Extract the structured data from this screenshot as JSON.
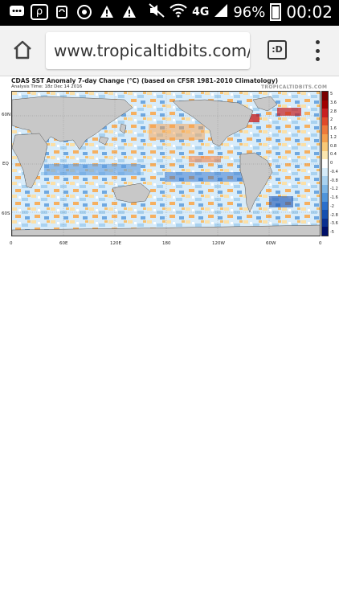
{
  "status_bar": {
    "battery": "96%",
    "time": "00:02",
    "network": "4G"
  },
  "browser": {
    "url": "www.tropicaltidbits.com/an",
    "tab_button_label": ":D"
  },
  "figure": {
    "title": "CDAS SST Anomaly 7-day Change (°C) (based on CFSR 1981-2010 Climatology)",
    "analysis_time": "Analysis Time: 18z Dec 14 2016",
    "brand": "TROPICALTIDBITS.COM",
    "lat_labels": [
      "60N",
      "EQ",
      "60S"
    ],
    "lon_labels": [
      "0",
      "60E",
      "120E",
      "180",
      "120W",
      "60W",
      "0"
    ],
    "colorbar_labels": [
      "5",
      "3.6",
      "2.8",
      "2",
      "1.6",
      "1.2",
      "0.8",
      "0.4",
      "0",
      "-0.4",
      "-0.8",
      "-1.2",
      "-1.6",
      "-2",
      "-2.8",
      "-3.6",
      "-5"
    ],
    "colorbar_colors": [
      "#7a0000",
      "#a00000",
      "#c82020",
      "#e04a2a",
      "#ee7a3c",
      "#f5a04e",
      "#f8c878",
      "#fbe6b0",
      "#ffffff",
      "#d6ecfa",
      "#a9d2f0",
      "#7cb6e6",
      "#4f95db",
      "#2b70cc",
      "#1550b0",
      "#0a3090",
      "#00106a"
    ],
    "land_color": "#c8c8c8"
  }
}
